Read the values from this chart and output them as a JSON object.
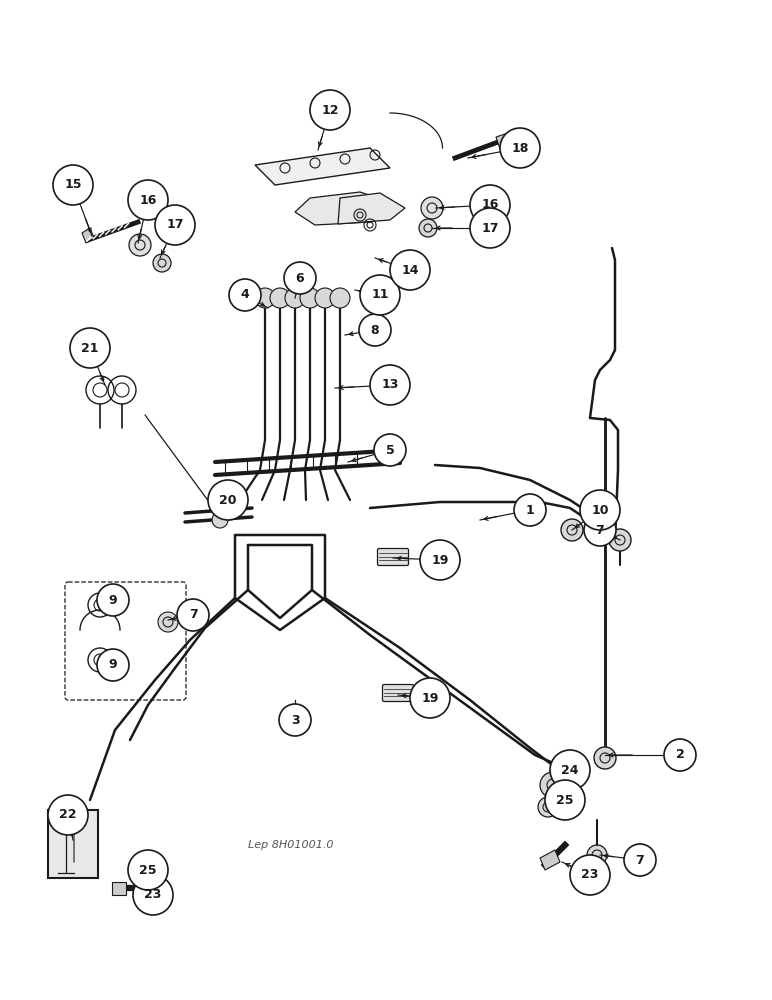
{
  "bg_color": "#ffffff",
  "lc": "#1a1a1a",
  "watermark": "Lep 8H01001.0",
  "fig_w": 7.72,
  "fig_h": 10.0,
  "dpi": 100,
  "labels": [
    [
      "1",
      530,
      510
    ],
    [
      "2",
      680,
      755
    ],
    [
      "3",
      295,
      720
    ],
    [
      "4",
      245,
      295
    ],
    [
      "5",
      390,
      450
    ],
    [
      "6",
      300,
      278
    ],
    [
      "7",
      600,
      530
    ],
    [
      "7",
      193,
      615
    ],
    [
      "7",
      640,
      860
    ],
    [
      "8",
      375,
      330
    ],
    [
      "9",
      113,
      600
    ],
    [
      "9",
      113,
      665
    ],
    [
      "10",
      600,
      510
    ],
    [
      "11",
      380,
      295
    ],
    [
      "12",
      330,
      110
    ],
    [
      "13",
      390,
      385
    ],
    [
      "14",
      410,
      270
    ],
    [
      "15",
      73,
      185
    ],
    [
      "16",
      148,
      200
    ],
    [
      "16",
      490,
      205
    ],
    [
      "17",
      175,
      225
    ],
    [
      "17",
      490,
      228
    ],
    [
      "18",
      520,
      148
    ],
    [
      "19",
      440,
      560
    ],
    [
      "19",
      430,
      698
    ],
    [
      "20",
      228,
      500
    ],
    [
      "21",
      90,
      348
    ],
    [
      "22",
      68,
      815
    ],
    [
      "23",
      153,
      895
    ],
    [
      "23",
      590,
      875
    ],
    [
      "24",
      570,
      770
    ],
    [
      "25",
      148,
      870
    ],
    [
      "25",
      565,
      800
    ]
  ],
  "leaders": [
    [
      "1",
      530,
      510,
      480,
      520
    ],
    [
      "2",
      680,
      755,
      605,
      755
    ],
    [
      "3",
      295,
      720,
      295,
      700
    ],
    [
      "4",
      245,
      295,
      268,
      308
    ],
    [
      "5",
      390,
      450,
      348,
      462
    ],
    [
      "6",
      300,
      278,
      295,
      298
    ],
    [
      "7",
      600,
      530,
      620,
      540
    ],
    [
      "7",
      193,
      615,
      168,
      620
    ],
    [
      "7",
      640,
      860,
      600,
      855
    ],
    [
      "8",
      375,
      330,
      345,
      335
    ],
    [
      "9",
      113,
      600,
      100,
      610
    ],
    [
      "9",
      113,
      665,
      100,
      655
    ],
    [
      "10",
      600,
      510,
      572,
      530
    ],
    [
      "11",
      380,
      295,
      355,
      290
    ],
    [
      "12",
      330,
      110,
      318,
      150
    ],
    [
      "13",
      390,
      385,
      335,
      388
    ],
    [
      "14",
      410,
      270,
      375,
      258
    ],
    [
      "15",
      73,
      185,
      92,
      236
    ],
    [
      "16",
      148,
      200,
      138,
      243
    ],
    [
      "16",
      490,
      205,
      436,
      208
    ],
    [
      "17",
      175,
      225,
      160,
      258
    ],
    [
      "17",
      490,
      228,
      432,
      228
    ],
    [
      "18",
      520,
      148,
      468,
      158
    ],
    [
      "19",
      440,
      560,
      393,
      558
    ],
    [
      "19",
      430,
      698,
      398,
      695
    ],
    [
      "20",
      228,
      500,
      228,
      515
    ],
    [
      "21",
      90,
      348,
      105,
      385
    ],
    [
      "22",
      68,
      815,
      73,
      840
    ],
    [
      "23",
      153,
      895,
      135,
      888
    ],
    [
      "23",
      590,
      875,
      562,
      862
    ],
    [
      "24",
      570,
      770,
      555,
      785
    ],
    [
      "25",
      148,
      870,
      143,
      878
    ],
    [
      "25",
      565,
      800,
      555,
      808
    ]
  ]
}
